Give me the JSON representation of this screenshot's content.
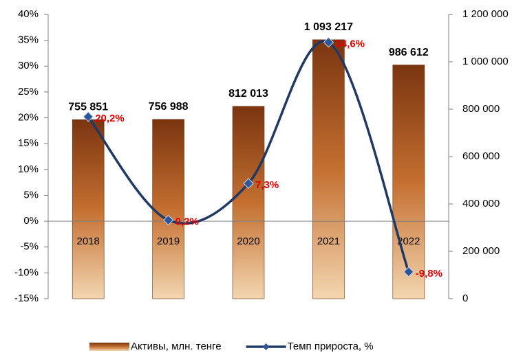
{
  "chart_data": {
    "type": "combo",
    "categories": [
      "2018",
      "2019",
      "2020",
      "2021",
      "2022"
    ],
    "series": [
      {
        "name": "Активы, млн. тенге",
        "type": "bar",
        "axis": "y2",
        "color": "#b5652a",
        "values": [
          755851,
          756988,
          812013,
          1093217,
          986612
        ],
        "value_labels": [
          "755 851",
          "756 988",
          "812 013",
          "1 093 217",
          "986 612"
        ]
      },
      {
        "name": "Темп прироста, %",
        "type": "line",
        "axis": "y",
        "color": "#1f3864",
        "values": [
          20.2,
          0.2,
          7.3,
          34.6,
          -9.8
        ],
        "value_labels": [
          "20,2%",
          "0,2%",
          "7,3%",
          "34,6%",
          "-9,8%"
        ]
      }
    ],
    "ylim": [
      -15,
      40
    ],
    "yticks": [
      {
        "value": -15,
        "label": "-15%"
      },
      {
        "value": -10,
        "label": "-10%"
      },
      {
        "value": -5,
        "label": "-5%"
      },
      {
        "value": 0,
        "label": "0%"
      },
      {
        "value": 5,
        "label": "5%"
      },
      {
        "value": 10,
        "label": "10%"
      },
      {
        "value": 15,
        "label": "15%"
      },
      {
        "value": 20,
        "label": "20%"
      },
      {
        "value": 25,
        "label": "25%"
      },
      {
        "value": 30,
        "label": "30%"
      },
      {
        "value": 35,
        "label": "35%"
      },
      {
        "value": 40,
        "label": "40%"
      }
    ],
    "y2lim": [
      0,
      1200000
    ],
    "y2ticks": [
      0,
      {
        "value": 200000,
        "label": "200 000"
      },
      {
        "value": 400000,
        "label": "400 000"
      },
      {
        "value": 600000,
        "label": "600 000"
      },
      {
        "value": 800000,
        "label": "800 000"
      },
      {
        "value": 1000000,
        "label": "1 000 000"
      },
      {
        "value": 1200000,
        "label": "1 200 000"
      }
    ],
    "legend": "bottom"
  }
}
